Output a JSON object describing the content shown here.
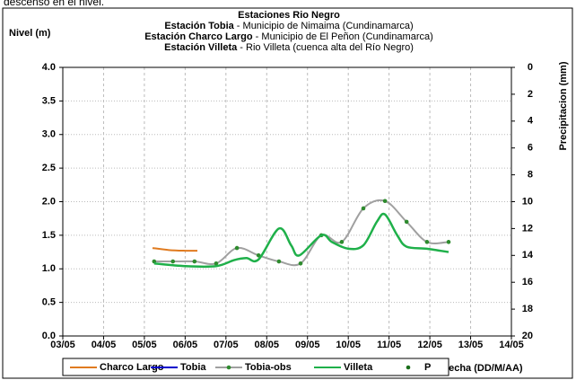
{
  "caption": "descenso en el nivel.",
  "chart_data": {
    "type": "line",
    "title": "Estaciones Rio Negro",
    "subtitle_lines": [
      {
        "bold": "Estación Tobia",
        "text": " - Municipio de Nimaima (Cundinamarca)"
      },
      {
        "bold": "Estación Charco Largo",
        "text": " - Municipio de El Peñon (Cundinamarca)"
      },
      {
        "bold": "Estación Villeta",
        "text": " -  Rio Villeta (cuenca alta del Río Negro)"
      }
    ],
    "y_label": "Nivel (m)",
    "y2_label": "Precipitacion (mm)",
    "x_label": "Fecha (DD/M/AA)",
    "xlim": [
      3,
      14
    ],
    "xticks": [
      {
        "value": 3,
        "label": "03/05"
      },
      {
        "value": 4,
        "label": "04/05"
      },
      {
        "value": 5,
        "label": "05/05"
      },
      {
        "value": 6,
        "label": "06/05"
      },
      {
        "value": 7,
        "label": "07/05"
      },
      {
        "value": 8,
        "label": "08/05"
      },
      {
        "value": 9,
        "label": "09/05"
      },
      {
        "value": 10,
        "label": "10/05"
      },
      {
        "value": 11,
        "label": "11/05"
      },
      {
        "value": 12,
        "label": "12/05"
      },
      {
        "value": 13,
        "label": "13/05"
      },
      {
        "value": 14,
        "label": "14/05"
      }
    ],
    "ylim": [
      0,
      4
    ],
    "yticks": [
      {
        "value": 0,
        "label": "0.0"
      },
      {
        "value": 0.5,
        "label": "0.5"
      },
      {
        "value": 1,
        "label": "1.0"
      },
      {
        "value": 1.5,
        "label": "1.5"
      },
      {
        "value": 2,
        "label": "2.0"
      },
      {
        "value": 2.5,
        "label": "2.5"
      },
      {
        "value": 3,
        "label": "3.0"
      },
      {
        "value": 3.5,
        "label": "3.5"
      },
      {
        "value": 4,
        "label": "4.0"
      }
    ],
    "y2lim": [
      20,
      0
    ],
    "y2ticks": [
      0,
      2,
      4,
      6,
      8,
      10,
      12,
      14,
      16,
      18,
      20
    ],
    "grid": true,
    "series": [
      {
        "name": "Charco Largo",
        "color": "#e07b20",
        "style": "line",
        "x": [
          5.2,
          5.6,
          6.0,
          6.3
        ],
        "values": [
          1.31,
          1.28,
          1.27,
          1.27
        ]
      },
      {
        "name": "Tobia",
        "color": "#0000cc",
        "style": "line",
        "x": [],
        "values": []
      },
      {
        "name": "Tobia-obs",
        "color": "#a0a0a0",
        "marker_color": "#2e8b2e",
        "style": "line-marker",
        "x": [
          5.24,
          5.7,
          6.23,
          6.76,
          7.27,
          7.8,
          8.3,
          8.83,
          9.34,
          9.84,
          10.37,
          10.9,
          11.43,
          11.93,
          12.46
        ],
        "values": [
          1.11,
          1.11,
          1.11,
          1.08,
          1.31,
          1.2,
          1.11,
          1.08,
          1.5,
          1.4,
          1.9,
          2.01,
          1.7,
          1.4,
          1.4
        ]
      },
      {
        "name": "Villeta",
        "color": "#1fb04a",
        "style": "line",
        "x": [
          5.24,
          6.0,
          6.76,
          7.2,
          7.5,
          7.8,
          8.3,
          8.6,
          8.8,
          9.34,
          9.6,
          10.0,
          10.37,
          10.7,
          10.9,
          11.2,
          11.43,
          11.93,
          12.46
        ],
        "values": [
          1.08,
          1.04,
          1.04,
          1.13,
          1.16,
          1.14,
          1.6,
          1.35,
          1.2,
          1.5,
          1.4,
          1.3,
          1.35,
          1.7,
          1.81,
          1.5,
          1.33,
          1.3,
          1.25
        ]
      },
      {
        "name": "P",
        "color": "#1a6e1a",
        "style": "marker",
        "x": [],
        "values": []
      }
    ]
  }
}
